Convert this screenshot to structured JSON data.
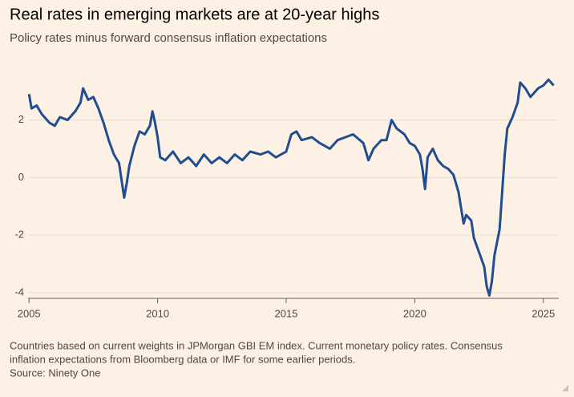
{
  "chart_data": {
    "type": "line",
    "title": "Real rates in emerging markets are at 20-year highs",
    "subtitle": "Policy rates minus forward consensus inflation expectations",
    "notes": [
      "Countries based on current weights in JPMorgan GBI EM index. Current monetary policy rates. Consensus",
      "inflation expectations from Bloomberg data or IMF for some earlier periods."
    ],
    "source": "Source: Ninety One",
    "color": "#1f4d8f",
    "grid": true,
    "xlim": [
      2004.9,
      2025.6
    ],
    "xticks": [
      2005,
      2010,
      2015,
      2020,
      2025
    ],
    "ylim": [
      -4.2,
      3.8
    ],
    "yticks": [
      -4,
      -2,
      0,
      2
    ],
    "x": [
      2005.0,
      2005.1,
      2005.3,
      2005.5,
      2005.8,
      2006.0,
      2006.2,
      2006.5,
      2006.8,
      2007.0,
      2007.1,
      2007.3,
      2007.5,
      2007.7,
      2007.9,
      2008.1,
      2008.3,
      2008.5,
      2008.6,
      2008.7,
      2008.8,
      2008.9,
      2009.1,
      2009.3,
      2009.5,
      2009.7,
      2009.8,
      2009.9,
      2010.0,
      2010.1,
      2010.3,
      2010.6,
      2010.9,
      2011.2,
      2011.5,
      2011.8,
      2012.1,
      2012.4,
      2012.7,
      2013.0,
      2013.3,
      2013.6,
      2014.0,
      2014.3,
      2014.6,
      2015.0,
      2015.2,
      2015.4,
      2015.6,
      2016.0,
      2016.3,
      2016.7,
      2017.0,
      2017.3,
      2017.6,
      2018.0,
      2018.2,
      2018.4,
      2018.7,
      2018.9,
      2019.1,
      2019.3,
      2019.6,
      2019.8,
      2020.0,
      2020.2,
      2020.3,
      2020.4,
      2020.5,
      2020.7,
      2020.9,
      2021.1,
      2021.3,
      2021.5,
      2021.7,
      2021.9,
      2022.0,
      2022.2,
      2022.3,
      2022.5,
      2022.7,
      2022.8,
      2022.9,
      2023.0,
      2023.1,
      2023.3,
      2023.4,
      2023.5,
      2023.6,
      2023.8,
      2024.0,
      2024.1,
      2024.3,
      2024.5,
      2024.8,
      2025.0,
      2025.2,
      2025.4
    ],
    "values": [
      2.9,
      2.4,
      2.5,
      2.2,
      1.9,
      1.8,
      2.1,
      2.0,
      2.3,
      2.6,
      3.1,
      2.7,
      2.8,
      2.4,
      1.9,
      1.3,
      0.8,
      0.5,
      -0.1,
      -0.7,
      -0.2,
      0.4,
      1.1,
      1.6,
      1.5,
      1.8,
      2.3,
      1.9,
      1.4,
      0.7,
      0.6,
      0.9,
      0.5,
      0.7,
      0.4,
      0.8,
      0.5,
      0.7,
      0.5,
      0.8,
      0.6,
      0.9,
      0.8,
      0.9,
      0.7,
      0.9,
      1.5,
      1.6,
      1.3,
      1.4,
      1.2,
      1.0,
      1.3,
      1.4,
      1.5,
      1.2,
      0.6,
      1.0,
      1.3,
      1.3,
      2.0,
      1.7,
      1.5,
      1.2,
      1.1,
      0.8,
      0.3,
      -0.4,
      0.7,
      1.0,
      0.6,
      0.4,
      0.3,
      0.1,
      -0.5,
      -1.6,
      -1.3,
      -1.5,
      -2.1,
      -2.6,
      -3.1,
      -3.8,
      -4.1,
      -3.6,
      -2.7,
      -1.8,
      -0.5,
      0.8,
      1.7,
      2.1,
      2.6,
      3.3,
      3.1,
      2.8,
      3.1,
      3.2,
      3.4,
      3.2
    ]
  }
}
